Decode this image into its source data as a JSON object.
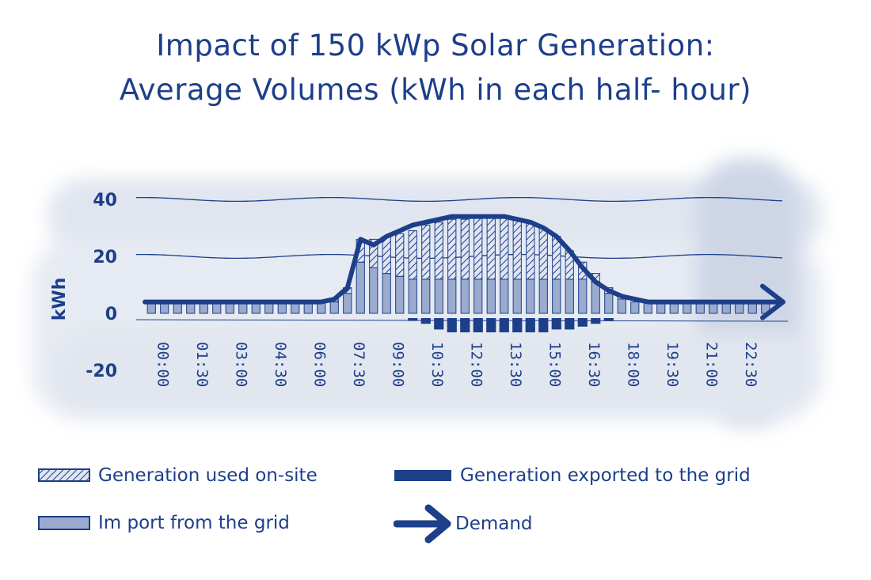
{
  "title_lines": [
    "Impact of 150 kWp Solar Generation:",
    "Average Volumes (kWh in each half- hour)"
  ],
  "legend": {
    "used_onsite": "Generation used on-site",
    "exported": "Generation exported to the grid",
    "import": "Im port from the grid",
    "demand": "Demand"
  },
  "colors": {
    "ink": "#1d3f8a",
    "import_fill": "#9aabce",
    "hatch_bg": "#dfe5f2",
    "halo": "#dde3ee"
  },
  "chart_data": {
    "type": "bar",
    "title": "Impact of 150 kWp Solar Generation: Average Volumes (kWh in each half- hour)",
    "ylabel": "kWh",
    "xlabel": "",
    "ylim": [
      -20,
      40
    ],
    "y_ticks": [
      "40",
      "20",
      "0",
      "-20"
    ],
    "y_tick_values": [
      40,
      20,
      0,
      -20
    ],
    "grid": true,
    "legend_position": "bottom",
    "x_tick_labels": [
      "00:00",
      "01:30",
      "03:00",
      "04:30",
      "06:00",
      "07:30",
      "09:00",
      "10:30",
      "12:00",
      "13:30",
      "15:00",
      "16:30",
      "18:00",
      "19:30",
      "21:00",
      "22:30"
    ],
    "categories": [
      "00:00",
      "00:30",
      "01:00",
      "01:30",
      "02:00",
      "02:30",
      "03:00",
      "03:30",
      "04:00",
      "04:30",
      "05:00",
      "05:30",
      "06:00",
      "06:30",
      "07:00",
      "07:30",
      "08:00",
      "08:30",
      "09:00",
      "09:30",
      "10:00",
      "10:30",
      "11:00",
      "11:30",
      "12:00",
      "12:30",
      "13:00",
      "13:30",
      "14:00",
      "14:30",
      "15:00",
      "15:30",
      "16:00",
      "16:30",
      "17:00",
      "17:30",
      "18:00",
      "18:30",
      "19:00",
      "19:30",
      "20:00",
      "20:30",
      "21:00",
      "21:30",
      "22:00",
      "22:30",
      "23:00",
      "23:30"
    ],
    "series": [
      {
        "name": "Im port from the grid",
        "values": [
          4,
          4,
          4,
          4,
          4,
          4,
          4,
          4,
          4,
          4,
          4,
          4,
          4,
          4,
          4,
          7,
          18,
          16,
          14,
          13,
          12,
          12,
          12,
          12,
          12,
          12,
          12,
          12,
          12,
          12,
          12,
          12,
          12,
          12,
          11,
          7,
          5,
          4,
          4,
          4,
          4,
          4,
          4,
          4,
          4,
          4,
          4,
          4
        ]
      },
      {
        "name": "Generation used on-site",
        "values": [
          0,
          0,
          0,
          0,
          0,
          0,
          0,
          0,
          0,
          0,
          0,
          0,
          0,
          0,
          1,
          2,
          8,
          10,
          13,
          15,
          17,
          19,
          20,
          21,
          21,
          22,
          22,
          22,
          21,
          20,
          18,
          15,
          10,
          6,
          3,
          2,
          1,
          0,
          0,
          0,
          0,
          0,
          0,
          0,
          0,
          0,
          0,
          0
        ]
      },
      {
        "name": "Generation exported to the grid",
        "values": [
          0,
          0,
          0,
          0,
          0,
          0,
          0,
          0,
          0,
          0,
          0,
          0,
          0,
          0,
          0,
          0,
          0,
          0,
          0,
          0,
          -1,
          -2,
          -4,
          -5,
          -5,
          -5,
          -5,
          -5,
          -5,
          -5,
          -5,
          -4,
          -4,
          -3,
          -2,
          -1,
          0,
          0,
          0,
          0,
          0,
          0,
          0,
          0,
          0,
          0,
          0,
          0
        ]
      },
      {
        "name": "Demand",
        "values": [
          4,
          4,
          4,
          4,
          4,
          4,
          4,
          4,
          4,
          4,
          4,
          4,
          4,
          4,
          5,
          9,
          26,
          24,
          27,
          29,
          31,
          32,
          33,
          34,
          34,
          34,
          34,
          34,
          33,
          32,
          30,
          27,
          22,
          16,
          11,
          8,
          6,
          5,
          4,
          4,
          4,
          4,
          4,
          4,
          4,
          4,
          4,
          4
        ]
      }
    ]
  }
}
